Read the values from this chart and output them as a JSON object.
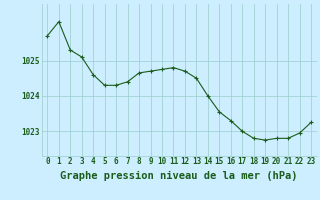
{
  "x": [
    0,
    1,
    2,
    3,
    4,
    5,
    6,
    7,
    8,
    9,
    10,
    11,
    12,
    13,
    14,
    15,
    16,
    17,
    18,
    19,
    20,
    21,
    22,
    23
  ],
  "y": [
    1025.7,
    1026.1,
    1025.3,
    1025.1,
    1024.6,
    1024.3,
    1024.3,
    1024.4,
    1024.65,
    1024.7,
    1024.75,
    1024.8,
    1024.7,
    1024.5,
    1024.0,
    1023.55,
    1023.3,
    1023.0,
    1022.8,
    1022.75,
    1022.8,
    1022.8,
    1022.95,
    1023.25
  ],
  "line_color": "#1a5c1a",
  "marker_color": "#1a5c1a",
  "bg_color": "#cceeff",
  "grid_color": "#99cccc",
  "title": "Graphe pression niveau de la mer (hPa)",
  "xlabel_ticks": [
    0,
    1,
    2,
    3,
    4,
    5,
    6,
    7,
    8,
    9,
    10,
    11,
    12,
    13,
    14,
    15,
    16,
    17,
    18,
    19,
    20,
    21,
    22,
    23
  ],
  "ytick_labels": [
    1023,
    1024,
    1025
  ],
  "ylim": [
    1022.3,
    1026.6
  ],
  "xlim": [
    -0.5,
    23.5
  ],
  "title_fontsize": 7.5,
  "tick_fontsize": 5.5
}
